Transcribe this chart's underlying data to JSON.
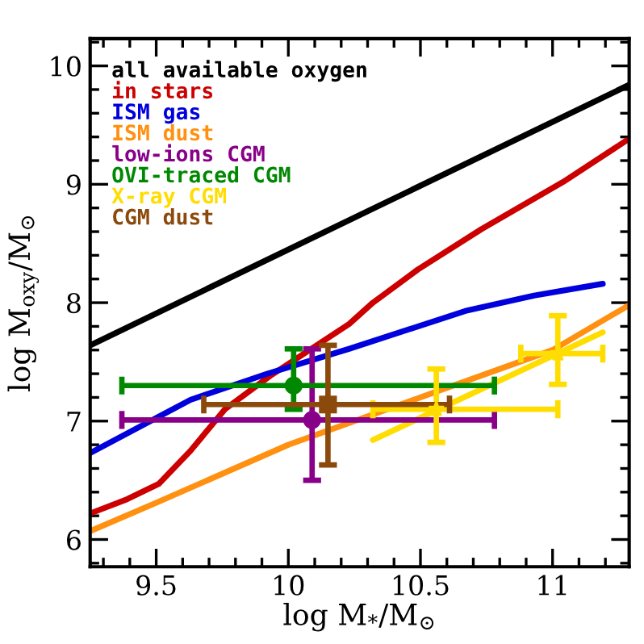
{
  "chart_data": {
    "type": "line",
    "xlabel": "log M$_{*}$/M$_{⊙}$",
    "ylabel": "log M$_{oxy}$/M$_{⊙}$",
    "xlim": [
      9.25,
      11.29
    ],
    "ylim": [
      5.77,
      10.23
    ],
    "xticks": [
      {
        "value": 9.3,
        "label": null
      },
      {
        "value": 9.4,
        "label": null
      },
      9.5,
      {
        "value": 9.6,
        "label": null
      },
      {
        "value": 9.7,
        "label": null
      },
      {
        "value": 9.8,
        "label": null
      },
      {
        "value": 9.9,
        "label": null
      },
      10,
      {
        "value": 10.1,
        "label": null
      },
      {
        "value": 10.2,
        "label": null
      },
      {
        "value": 10.3,
        "label": null
      },
      {
        "value": 10.4,
        "label": null
      },
      10.5,
      {
        "value": 10.6,
        "label": null
      },
      {
        "value": 10.7,
        "label": null
      },
      {
        "value": 10.8,
        "label": null
      },
      {
        "value": 10.9,
        "label": null
      },
      11,
      {
        "value": 11.1,
        "label": null
      },
      {
        "value": 11.2,
        "label": null
      }
    ],
    "yticks": [
      {
        "value": 5.8,
        "label": null
      },
      6,
      {
        "value": 6.2,
        "label": null
      },
      {
        "value": 6.4,
        "label": null
      },
      {
        "value": 6.6,
        "label": null
      },
      {
        "value": 6.8,
        "label": null
      },
      7,
      {
        "value": 7.2,
        "label": null
      },
      {
        "value": 7.4,
        "label": null
      },
      {
        "value": 7.6,
        "label": null
      },
      {
        "value": 7.8,
        "label": null
      },
      8,
      {
        "value": 8.2,
        "label": null
      },
      {
        "value": 8.4,
        "label": null
      },
      {
        "value": 8.6,
        "label": null
      },
      {
        "value": 8.8,
        "label": null
      },
      9,
      {
        "value": 9.2,
        "label": null
      },
      {
        "value": 9.4,
        "label": null
      },
      {
        "value": 9.6,
        "label": null
      },
      {
        "value": 9.8,
        "label": null
      },
      10,
      {
        "value": 10.2,
        "label": null
      }
    ],
    "legend": "top left",
    "grid": false,
    "series": [
      {
        "name": "all available oxygen",
        "color": "#000000",
        "x": [
          9.25,
          11.29
        ],
        "values": [
          7.64,
          9.84
        ]
      },
      {
        "name": "in stars",
        "color": "#cc0000",
        "x": [
          9.25,
          9.39,
          9.51,
          9.63,
          9.76,
          9.93,
          10.23,
          10.32,
          10.49,
          10.73,
          11.04,
          11.28
        ],
        "values": [
          6.22,
          6.34,
          6.47,
          6.75,
          7.1,
          7.38,
          7.82,
          8.0,
          8.28,
          8.62,
          9.02,
          9.37
        ]
      },
      {
        "name": "ISM gas",
        "color": "#0000dd",
        "x": [
          9.25,
          9.63,
          9.92,
          10.23,
          10.67,
          10.93,
          11.19
        ],
        "values": [
          6.73,
          7.18,
          7.4,
          7.61,
          7.93,
          8.06,
          8.16
        ]
      },
      {
        "name": "ISM dust",
        "color": "#ff9010",
        "x": [
          9.25,
          9.5,
          10.0,
          10.5,
          11.0,
          11.29
        ],
        "values": [
          6.07,
          6.31,
          6.8,
          7.2,
          7.6,
          7.98
        ]
      },
      {
        "name": "low-ions CGM",
        "color": "#880088",
        "type": "scatter",
        "marker": "circle",
        "x": [
          10.09
        ],
        "values": [
          7.01
        ],
        "errors": [
          [
            6.5,
            7.61
          ]
        ],
        "xerrors": [
          [
            9.37,
            10.78
          ]
        ]
      },
      {
        "name": "OVI-traced CGM",
        "color": "#008800",
        "type": "scatter",
        "marker": "circle",
        "x": [
          10.02
        ],
        "values": [
          7.3
        ],
        "errors": [
          [
            7.1,
            7.61
          ]
        ],
        "xerrors": [
          [
            9.37,
            10.78
          ]
        ]
      },
      {
        "name": "X-ray CGM",
        "color": "#ffdd00",
        "type": "scatter",
        "marker": "star",
        "x": [
          10.56,
          11.02
        ],
        "values": [
          7.1,
          7.57
        ],
        "errors": [
          [
            6.82,
            7.44
          ],
          [
            7.31,
            7.89
          ]
        ],
        "xerrors": [
          [
            10.32,
            11.02
          ],
          [
            10.88,
            11.19
          ]
        ]
      },
      {
        "name": "CGM dust",
        "color": "#8b4a0c",
        "type": "scatter",
        "marker": "square",
        "x": [
          10.15
        ],
        "values": [
          7.14
        ],
        "errors": [
          [
            6.63,
            7.64
          ]
        ],
        "xerrors": [
          [
            9.68,
            10.61
          ]
        ]
      },
      {
        "color": "#ffdd00",
        "x": [
          10.32,
          11.19
        ],
        "values": [
          6.84,
          7.75
        ]
      }
    ]
  }
}
